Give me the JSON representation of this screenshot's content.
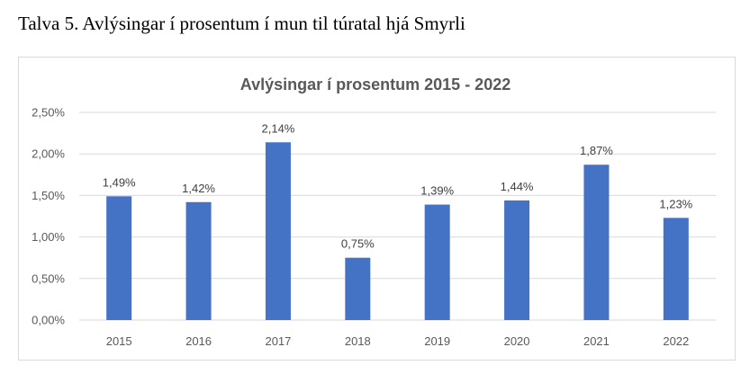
{
  "caption": "Talva 5. Avlýsingar í prosentum í mun til túratal hjá Smyrli",
  "colors": {
    "bar": "#4472c4",
    "gridline": "#d9d9d9",
    "axis_text": "#595959",
    "frame_border": "#d9d9d9"
  },
  "chart_data": {
    "type": "bar",
    "title": "Avlýsingar í prosentum 2015 - 2022",
    "xlabel": "",
    "ylabel": "",
    "categories": [
      "2015",
      "2016",
      "2017",
      "2018",
      "2019",
      "2020",
      "2021",
      "2022"
    ],
    "values": [
      1.49,
      1.42,
      2.14,
      0.75,
      1.39,
      1.44,
      1.87,
      1.23
    ],
    "data_labels": [
      "1,49%",
      "1,42%",
      "2,14%",
      "0,75%",
      "1,39%",
      "1,44%",
      "1,87%",
      "1,23%"
    ],
    "ylim": [
      0,
      2.5
    ],
    "yticks": [
      0,
      0.5,
      1.0,
      1.5,
      2.0,
      2.5
    ],
    "ytick_labels": [
      "0,00%",
      "0,50%",
      "1,00%",
      "1,50%",
      "2,00%",
      "2,50%"
    ],
    "grid": true,
    "legend": "none"
  }
}
